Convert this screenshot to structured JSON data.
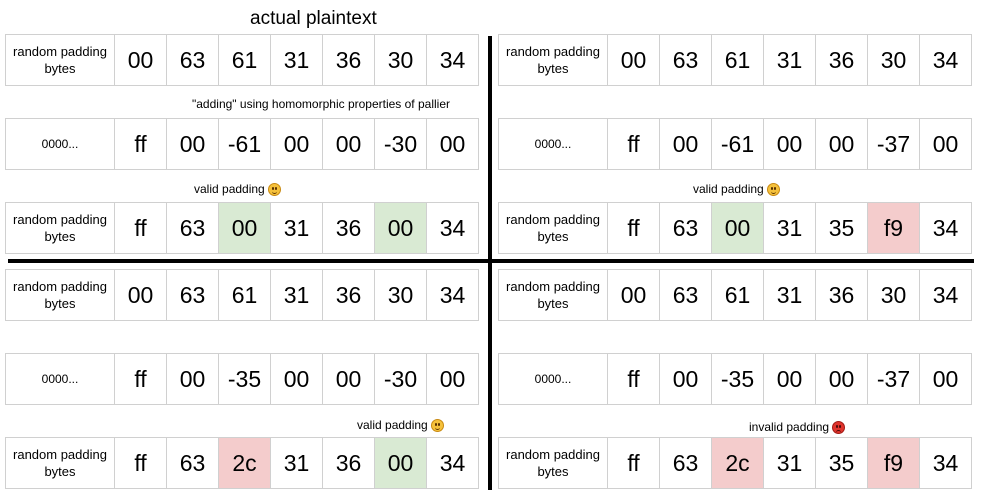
{
  "title": "actual plaintext",
  "labels": {
    "padding": "random padding bytes",
    "zeros": "0000..."
  },
  "captions": {
    "adding": "\"adding\" using homomorphic properties of pallier",
    "valid": "valid padding",
    "invalid": "invalid padding"
  },
  "quadrants": {
    "tl": {
      "plaintext": [
        "00",
        "63",
        "61",
        "31",
        "36",
        "30",
        "34"
      ],
      "delta": [
        "ff",
        "00",
        "-61",
        "00",
        "00",
        "-30",
        "00"
      ],
      "result": [
        "ff",
        "63",
        "00",
        "31",
        "36",
        "00",
        "34"
      ]
    },
    "tr": {
      "plaintext": [
        "00",
        "63",
        "61",
        "31",
        "36",
        "30",
        "34"
      ],
      "delta": [
        "ff",
        "00",
        "-61",
        "00",
        "00",
        "-37",
        "00"
      ],
      "result": [
        "ff",
        "63",
        "00",
        "31",
        "35",
        "f9",
        "34"
      ]
    },
    "bl": {
      "plaintext": [
        "00",
        "63",
        "61",
        "31",
        "36",
        "30",
        "34"
      ],
      "delta": [
        "ff",
        "00",
        "-35",
        "00",
        "00",
        "-30",
        "00"
      ],
      "result": [
        "ff",
        "63",
        "2c",
        "31",
        "36",
        "00",
        "34"
      ]
    },
    "br": {
      "plaintext": [
        "00",
        "63",
        "61",
        "31",
        "36",
        "30",
        "34"
      ],
      "delta": [
        "ff",
        "00",
        "-35",
        "00",
        "00",
        "-37",
        "00"
      ],
      "result": [
        "ff",
        "63",
        "2c",
        "31",
        "35",
        "f9",
        "34"
      ]
    }
  },
  "colors": {
    "valid_byte": "#d9ead3",
    "invalid_byte": "#f4cccc",
    "valid_face": "#f5c13b",
    "invalid_face": "#e0332c"
  },
  "faces": {
    "valid": "smiling-face-icon",
    "invalid": "angry-face-icon"
  }
}
